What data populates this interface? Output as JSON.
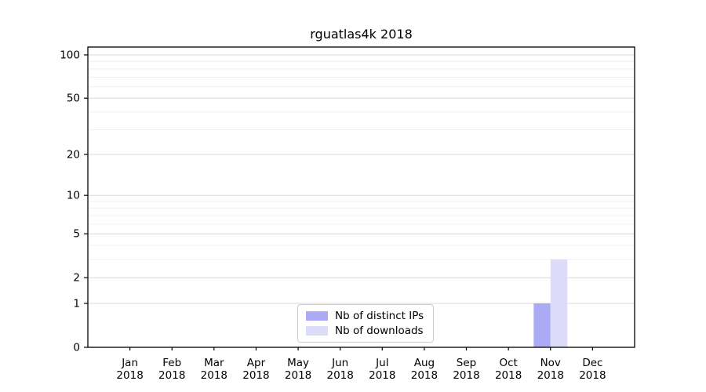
{
  "chart_data": {
    "type": "bar",
    "title": "rguatlas4k 2018",
    "categories": [
      "Jan 2018",
      "Feb 2018",
      "Mar 2018",
      "Apr 2018",
      "May 2018",
      "Jun 2018",
      "Jul 2018",
      "Aug 2018",
      "Sep 2018",
      "Oct 2018",
      "Nov 2018",
      "Dec 2018"
    ],
    "series": [
      {
        "name": "Nb of distinct IPs",
        "color": "#aaaaf5",
        "values": [
          0,
          0,
          0,
          0,
          0,
          0,
          0,
          0,
          0,
          0,
          1,
          0
        ]
      },
      {
        "name": "Nb of downloads",
        "color": "#dcdcf9",
        "values": [
          0,
          0,
          0,
          0,
          0,
          0,
          0,
          0,
          0,
          0,
          3,
          0
        ]
      }
    ],
    "y_axis": {
      "scale": "log10(1 + value)",
      "major_ticks": [
        0,
        1,
        2,
        5,
        10,
        20,
        50,
        100
      ],
      "minor_ticks": [
        3,
        4,
        6,
        7,
        8,
        9,
        30,
        40,
        60,
        70,
        80,
        90
      ],
      "range": [
        0,
        115
      ]
    },
    "x_axis": {
      "tick_count": 12
    },
    "legend": {
      "position": "bottom-center"
    },
    "grid": "horizontal-only",
    "background": "#ffffff"
  }
}
